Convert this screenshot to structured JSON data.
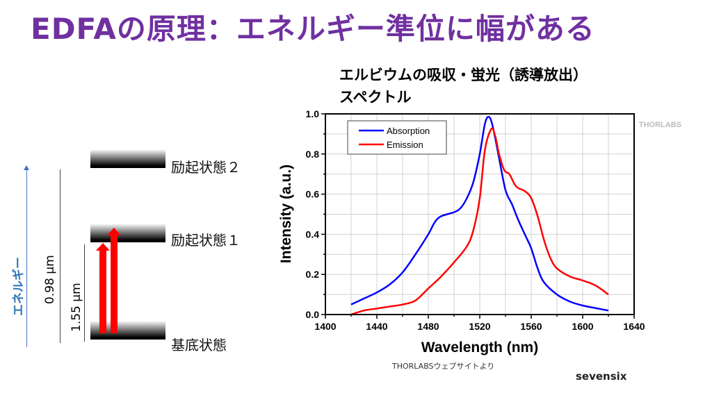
{
  "slide": {
    "title": "EDFAの原理：エネルギー準位に幅がある",
    "chart_title_line1": "エルビウムの吸収・蛍光（誘導放出）",
    "chart_title_line2": "スペクトル",
    "credit": "THORLABSウェブサイトより",
    "brand": "sevensix"
  },
  "diagram": {
    "energy_axis_label": "エネルギー",
    "energy_axis_color": "#4472c4",
    "levels": [
      "励起状態２",
      "励起状態１",
      "基底状態"
    ],
    "gap_098": "0.98 µm",
    "gap_155": "1.55 µm",
    "arrow_color": "#ff0000"
  },
  "chart_data": {
    "type": "line",
    "xlabel": "Wavelength (nm)",
    "ylabel": "Intensity (a.u.)",
    "xlim": [
      1400,
      1640
    ],
    "ylim": [
      0,
      1.0
    ],
    "xticks": [
      1400,
      1440,
      1480,
      1520,
      1560,
      1600,
      1640
    ],
    "yticks": [
      "0.0",
      "0.2",
      "0.4",
      "0.6",
      "0.8",
      "1.0"
    ],
    "grid": true,
    "legend": "top-left",
    "watermark": "THORLABS",
    "series": [
      {
        "name": "Absorption",
        "color": "#0000ff",
        "x": [
          1420,
          1430,
          1440,
          1450,
          1460,
          1470,
          1480,
          1485,
          1490,
          1500,
          1505,
          1510,
          1515,
          1520,
          1524,
          1527,
          1530,
          1535,
          1540,
          1545,
          1550,
          1555,
          1560,
          1565,
          1570,
          1580,
          1590,
          1600,
          1610,
          1620
        ],
        "y": [
          0.05,
          0.08,
          0.11,
          0.15,
          0.21,
          0.3,
          0.4,
          0.46,
          0.49,
          0.51,
          0.53,
          0.58,
          0.66,
          0.8,
          0.95,
          0.985,
          0.94,
          0.78,
          0.62,
          0.55,
          0.47,
          0.4,
          0.33,
          0.23,
          0.16,
          0.1,
          0.065,
          0.045,
          0.032,
          0.02
        ]
      },
      {
        "name": "Emission",
        "color": "#ff0000",
        "x": [
          1420,
          1430,
          1440,
          1450,
          1460,
          1470,
          1480,
          1490,
          1500,
          1510,
          1515,
          1520,
          1524,
          1529,
          1532,
          1535,
          1539,
          1543,
          1547,
          1550,
          1555,
          1560,
          1565,
          1570,
          1575,
          1580,
          1590,
          1600,
          1610,
          1620
        ],
        "y": [
          0.0,
          0.02,
          0.03,
          0.04,
          0.05,
          0.07,
          0.13,
          0.19,
          0.26,
          0.34,
          0.42,
          0.58,
          0.82,
          0.925,
          0.89,
          0.8,
          0.72,
          0.7,
          0.65,
          0.63,
          0.615,
          0.58,
          0.49,
          0.37,
          0.28,
          0.23,
          0.19,
          0.17,
          0.145,
          0.1
        ]
      }
    ]
  }
}
